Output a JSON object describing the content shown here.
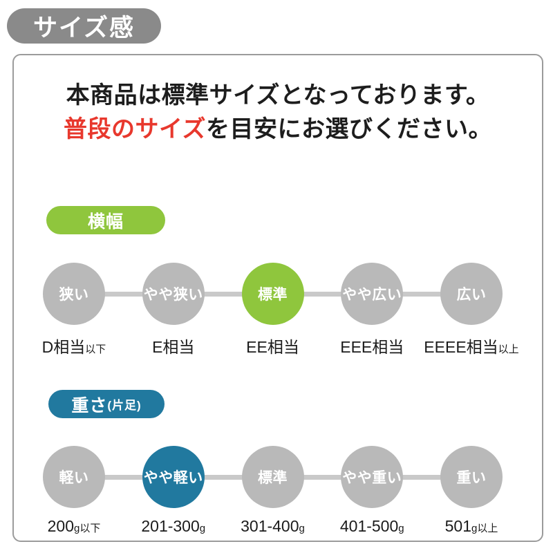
{
  "header": {
    "badge": "サイズ感"
  },
  "intro": {
    "line1": "本商品は標準サイズとなっております。",
    "line2_highlight": "普段のサイズ",
    "line2_rest": "を目安にお選びください。"
  },
  "width_section": {
    "pill_label": "横幅",
    "active_index": 2,
    "items": [
      {
        "circle": "狭い",
        "label_main": "D相当",
        "label_suffix": "以下"
      },
      {
        "circle": "やや狭い",
        "label_main": "E相当",
        "label_suffix": ""
      },
      {
        "circle": "標準",
        "label_main": "EE相当",
        "label_suffix": ""
      },
      {
        "circle": "やや広い",
        "label_main": "EEE相当",
        "label_suffix": ""
      },
      {
        "circle": "広い",
        "label_main": "EEEE相当",
        "label_suffix": "以上"
      }
    ]
  },
  "weight_section": {
    "pill_label": "重さ",
    "pill_suffix": "(片足)",
    "active_index": 1,
    "items": [
      {
        "circle": "軽い",
        "label_main": "200",
        "label_suffix": "g以下"
      },
      {
        "circle": "やや軽い",
        "label_main": "201-300",
        "label_suffix": "g"
      },
      {
        "circle": "標準",
        "label_main": "301-400",
        "label_suffix": "g"
      },
      {
        "circle": "やや重い",
        "label_main": "401-500",
        "label_suffix": "g"
      },
      {
        "circle": "重い",
        "label_main": "501",
        "label_suffix": "g以上"
      }
    ]
  },
  "colors": {
    "accent-green": "#8fc63d",
    "accent-blue": "#21799f",
    "circle-gray": "#b9b9b9",
    "connector-gray": "#c9c9c9",
    "badge-gray": "#8a8a8a",
    "box-border": "#9b9b9b",
    "text-red": "#e8382d",
    "text-black": "#1d1d1d"
  }
}
